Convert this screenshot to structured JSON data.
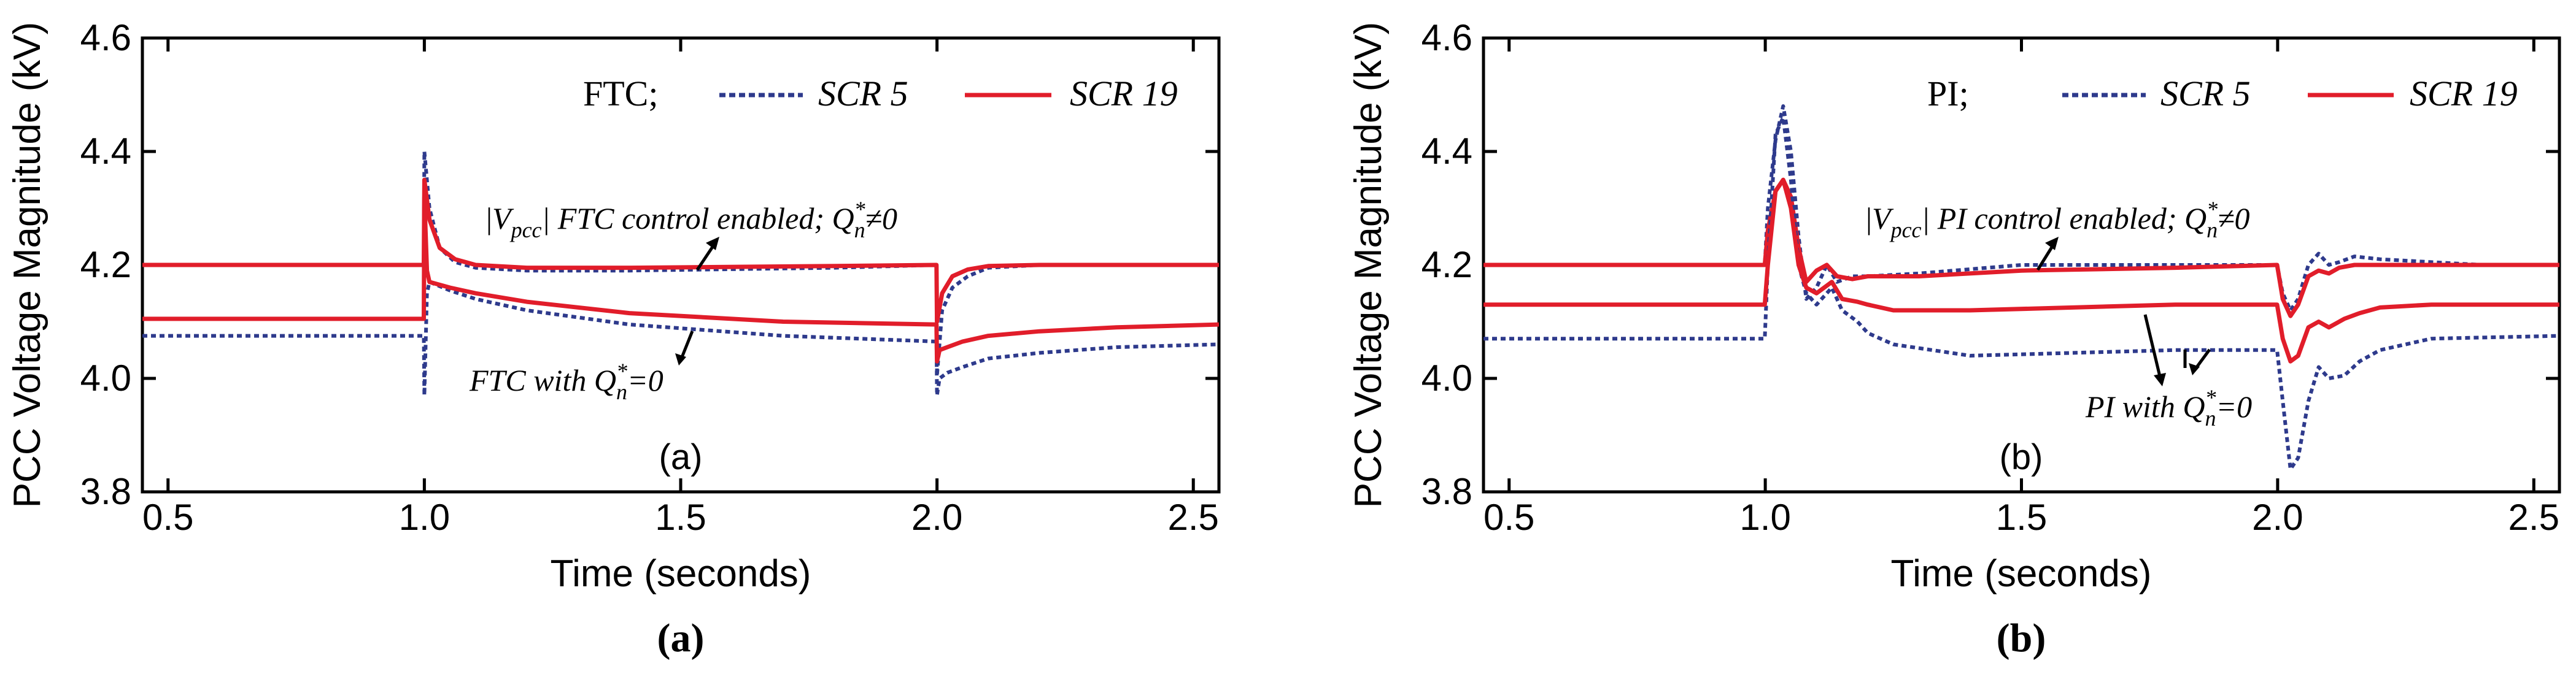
{
  "colors": {
    "scr5": "#2e3a8c",
    "scr19": "#e11d2a",
    "axis": "#000000"
  },
  "chart_data": [
    {
      "type": "line",
      "panel_caption": "(a)",
      "panel_tag": "(a)",
      "xlabel": "Time (seconds)",
      "ylabel": "PCC Voltage Magnitude (kV)",
      "xlim": [
        0.45,
        2.55
      ],
      "ylim": [
        3.8,
        4.6
      ],
      "xticks": [
        0.5,
        1.0,
        1.5,
        2.0,
        2.5
      ],
      "xtick_labels": [
        "0.5",
        "1.0",
        "1.5",
        "2.0",
        "2.5"
      ],
      "yticks": [
        3.8,
        4.0,
        4.2,
        4.4,
        4.6
      ],
      "ytick_labels": [
        "3.8",
        "4.0",
        "4.2",
        "4.4",
        "4.6"
      ],
      "legend": {
        "prefix": "FTC;",
        "entries": [
          "SCR 5",
          "SCR 19"
        ],
        "position": "top-right"
      },
      "annotations": {
        "upper": {
          "pre": "|",
          "v": "V",
          "sub": "pcc",
          "mid": "| FTC control enabled; ",
          "q": "Q",
          "qsub": "n",
          "qsup": "*",
          "post": "≠0"
        },
        "lower": {
          "pre": "FTC with ",
          "q": "Q",
          "qsub": "n",
          "qsup": "*",
          "post": "=0"
        }
      },
      "series": [
        {
          "name": "SCR 5 (Q*≠0)",
          "style": "dotted",
          "x": [
            0.45,
            0.999,
            1.0,
            1.01,
            1.03,
            1.06,
            1.1,
            1.2,
            1.4,
            1.8,
            1.999,
            2.0,
            2.01,
            2.03,
            2.06,
            2.1,
            2.2,
            2.3,
            2.4,
            2.55
          ],
          "y": [
            4.2,
            4.2,
            4.4,
            4.3,
            4.23,
            4.205,
            4.195,
            4.19,
            4.19,
            4.195,
            4.2,
            4.005,
            4.12,
            4.16,
            4.18,
            4.195,
            4.2,
            4.2,
            4.2,
            4.2
          ]
        },
        {
          "name": "SCR 19 (Q*≠0)",
          "style": "solid",
          "x": [
            0.45,
            0.999,
            1.0,
            1.01,
            1.03,
            1.06,
            1.1,
            1.2,
            1.4,
            1.8,
            1.999,
            2.0,
            2.01,
            2.03,
            2.06,
            2.1,
            2.2,
            2.3,
            2.4,
            2.55
          ],
          "y": [
            4.2,
            4.2,
            4.35,
            4.28,
            4.23,
            4.21,
            4.2,
            4.195,
            4.195,
            4.198,
            4.2,
            4.1,
            4.15,
            4.18,
            4.192,
            4.198,
            4.2,
            4.2,
            4.2,
            4.2
          ]
        },
        {
          "name": "SCR 5 (Q*=0)",
          "style": "dotted",
          "x": [
            0.45,
            0.999,
            1.0,
            1.005,
            1.01,
            1.05,
            1.1,
            1.2,
            1.4,
            1.7,
            1.999,
            2.0,
            2.005,
            2.02,
            2.05,
            2.1,
            2.2,
            2.35,
            2.55
          ],
          "y": [
            4.075,
            4.075,
            3.97,
            4.15,
            4.17,
            4.155,
            4.14,
            4.12,
            4.095,
            4.075,
            4.065,
            3.97,
            4.0,
            4.01,
            4.02,
            4.035,
            4.045,
            4.055,
            4.06
          ]
        },
        {
          "name": "SCR 19 (Q*=0)",
          "style": "solid",
          "x": [
            0.45,
            0.999,
            1.0,
            1.005,
            1.01,
            1.05,
            1.1,
            1.2,
            1.4,
            1.7,
            1.999,
            2.0,
            2.005,
            2.02,
            2.05,
            2.1,
            2.2,
            2.35,
            2.55
          ],
          "y": [
            4.105,
            4.105,
            4.32,
            4.19,
            4.17,
            4.16,
            4.15,
            4.135,
            4.115,
            4.1,
            4.095,
            4.03,
            4.05,
            4.055,
            4.065,
            4.075,
            4.083,
            4.09,
            4.095
          ]
        }
      ]
    },
    {
      "type": "line",
      "panel_caption": "(b)",
      "panel_tag": "(b)",
      "xlabel": "Time (seconds)",
      "ylabel": "PCC Voltage Magnitude (kV)",
      "xlim": [
        0.45,
        2.55
      ],
      "ylim": [
        3.8,
        4.6
      ],
      "xticks": [
        0.5,
        1.0,
        1.5,
        2.0,
        2.5
      ],
      "xtick_labels": [
        "0.5",
        "1.0",
        "1.5",
        "2.0",
        "2.5"
      ],
      "yticks": [
        3.8,
        4.0,
        4.2,
        4.4,
        4.6
      ],
      "ytick_labels": [
        "3.8",
        "4.0",
        "4.2",
        "4.4",
        "4.6"
      ],
      "legend": {
        "prefix": "PI;",
        "entries": [
          "SCR 5",
          "SCR 19"
        ],
        "position": "top-right"
      },
      "annotations": {
        "upper": {
          "pre": "|",
          "v": "V",
          "sub": "pcc",
          "mid": "| PI control enabled; ",
          "q": "Q",
          "qsub": "n",
          "qsup": "*",
          "post": "≠0"
        },
        "lower": {
          "pre": "PI with ",
          "q": "Q",
          "qsub": "n",
          "qsup": "*",
          "post": "=0"
        }
      },
      "series": [
        {
          "name": "SCR 5 (Q*≠0)",
          "style": "dotted",
          "x": [
            0.45,
            0.999,
            1.005,
            1.02,
            1.035,
            1.05,
            1.065,
            1.08,
            1.1,
            1.12,
            1.14,
            1.17,
            1.2,
            1.3,
            1.5,
            1.8,
            1.999,
            2.01,
            2.025,
            2.04,
            2.06,
            2.08,
            2.1,
            2.12,
            2.15,
            2.2,
            2.3,
            2.4,
            2.55
          ],
          "y": [
            4.2,
            4.2,
            4.3,
            4.42,
            4.48,
            4.4,
            4.25,
            4.14,
            4.16,
            4.2,
            4.17,
            4.18,
            4.18,
            4.185,
            4.2,
            4.2,
            4.2,
            4.15,
            4.12,
            4.14,
            4.2,
            4.22,
            4.2,
            4.205,
            4.215,
            4.21,
            4.205,
            4.2,
            4.2
          ]
        },
        {
          "name": "SCR 19 (Q*≠0)",
          "style": "solid",
          "x": [
            0.45,
            0.999,
            1.005,
            1.02,
            1.035,
            1.05,
            1.065,
            1.08,
            1.1,
            1.12,
            1.14,
            1.17,
            1.2,
            1.3,
            1.5,
            1.8,
            1.999,
            2.01,
            2.025,
            2.04,
            2.06,
            2.08,
            2.1,
            2.12,
            2.15,
            2.2,
            2.3,
            2.4,
            2.55
          ],
          "y": [
            4.2,
            4.2,
            4.26,
            4.33,
            4.35,
            4.32,
            4.23,
            4.17,
            4.19,
            4.2,
            4.18,
            4.175,
            4.18,
            4.18,
            4.19,
            4.195,
            4.2,
            4.14,
            4.11,
            4.13,
            4.18,
            4.19,
            4.185,
            4.195,
            4.2,
            4.2,
            4.2,
            4.2,
            4.2
          ]
        },
        {
          "name": "SCR 5 (Q*=0)",
          "style": "dotted",
          "x": [
            0.45,
            0.999,
            1.005,
            1.02,
            1.035,
            1.05,
            1.065,
            1.08,
            1.1,
            1.13,
            1.15,
            1.18,
            1.2,
            1.25,
            1.4,
            1.6,
            1.8,
            1.999,
            2.01,
            2.025,
            2.04,
            2.06,
            2.08,
            2.1,
            2.13,
            2.16,
            2.2,
            2.3,
            2.55
          ],
          "y": [
            4.07,
            4.07,
            4.2,
            4.43,
            4.46,
            4.35,
            4.2,
            4.15,
            4.13,
            4.16,
            4.12,
            4.1,
            4.08,
            4.06,
            4.04,
            4.045,
            4.05,
            4.05,
            3.96,
            3.84,
            3.86,
            3.96,
            4.02,
            4.0,
            4.005,
            4.03,
            4.05,
            4.07,
            4.075
          ]
        },
        {
          "name": "SCR 19 (Q*=0)",
          "style": "solid",
          "x": [
            0.45,
            0.999,
            1.005,
            1.02,
            1.035,
            1.05,
            1.065,
            1.08,
            1.1,
            1.13,
            1.15,
            1.18,
            1.2,
            1.25,
            1.4,
            1.6,
            1.8,
            1.999,
            2.01,
            2.025,
            2.04,
            2.06,
            2.08,
            2.1,
            2.13,
            2.16,
            2.2,
            2.3,
            2.55
          ],
          "y": [
            4.13,
            4.13,
            4.2,
            4.33,
            4.35,
            4.3,
            4.2,
            4.16,
            4.15,
            4.17,
            4.14,
            4.135,
            4.13,
            4.12,
            4.12,
            4.125,
            4.13,
            4.13,
            4.07,
            4.03,
            4.04,
            4.09,
            4.1,
            4.09,
            4.105,
            4.115,
            4.125,
            4.13,
            4.13
          ]
        }
      ]
    }
  ]
}
